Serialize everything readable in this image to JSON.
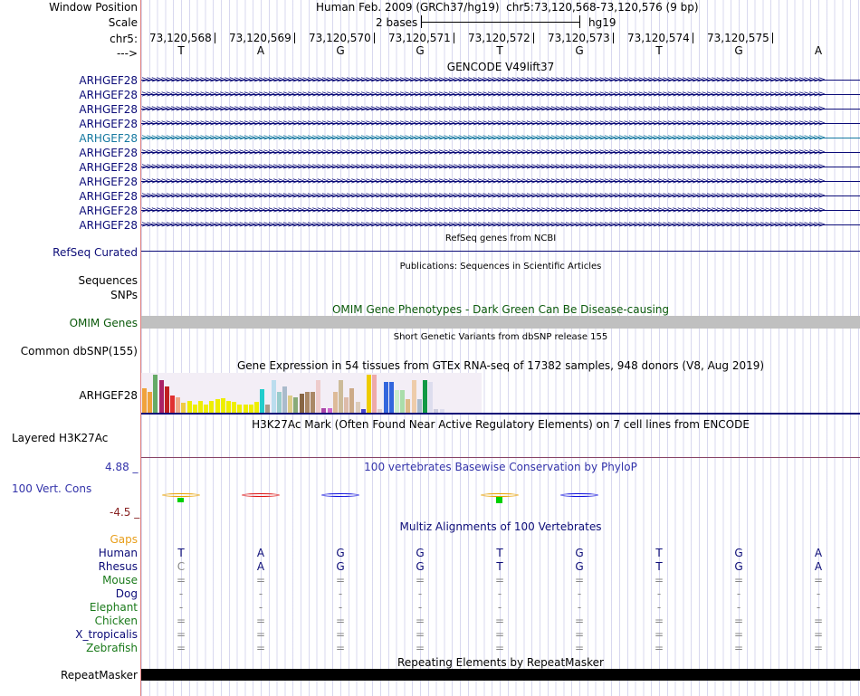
{
  "header": {
    "window_position_label": "Window Position",
    "assembly": "Human Feb. 2009 (GRCh37/hg19)",
    "position": "chr5:73,120,568-73,120,576 (9 bp)",
    "scale_label": "Scale",
    "scale_text": "2 bases",
    "db": "hg19",
    "chrom_label": "chr5:",
    "strand_label": "--->"
  },
  "ruler": {
    "positions": [
      "73,120,568",
      "73,120,569",
      "73,120,570",
      "73,120,571",
      "73,120,572",
      "73,120,573",
      "73,120,574",
      "73,120,575"
    ]
  },
  "sequence": [
    "T",
    "A",
    "G",
    "G",
    "T",
    "G",
    "T",
    "G",
    "A"
  ],
  "gencode": {
    "title": "GENCODE V49lift37",
    "transcripts": [
      {
        "name": "ARHGEF28",
        "color": "#0c0c78"
      },
      {
        "name": "ARHGEF28",
        "color": "#0c0c78"
      },
      {
        "name": "ARHGEF28",
        "color": "#0c0c78"
      },
      {
        "name": "ARHGEF28",
        "color": "#0c0c78"
      },
      {
        "name": "ARHGEF28",
        "color": "#1478a0"
      },
      {
        "name": "ARHGEF28",
        "color": "#0c0c78"
      },
      {
        "name": "ARHGEF28",
        "color": "#0c0c78"
      },
      {
        "name": "ARHGEF28",
        "color": "#0c0c78"
      },
      {
        "name": "ARHGEF28",
        "color": "#0c0c78"
      },
      {
        "name": "ARHGEF28",
        "color": "#0c0c78"
      },
      {
        "name": "ARHGEF28",
        "color": "#0c0c78"
      }
    ]
  },
  "refseq": {
    "title": "RefSeq genes from NCBI",
    "label": "RefSeq Curated"
  },
  "publications": {
    "title": "Publications: Sequences in Scientific Articles",
    "label1": "Sequences",
    "label2": "SNPs"
  },
  "omim": {
    "title": "OMIM Gene Phenotypes - Dark Green Can Be Disease-causing",
    "label": "OMIM Genes",
    "color": "#0b5a0b"
  },
  "dbsnp": {
    "title": "Short Genetic Variants from dbSNP release 155",
    "label": "Common dbSNP(155)"
  },
  "gtex": {
    "title": "Gene Expression in 54 tissues from GTEx RNA-seq of 17382 samples, 948 donors (V8, Aug 2019)",
    "label": "ARHGEF28",
    "bars": [
      {
        "h": 0.65,
        "c": "#f0a23c"
      },
      {
        "h": 0.55,
        "c": "#f0a23c"
      },
      {
        "h": 1.0,
        "c": "#66aa66"
      },
      {
        "h": 0.85,
        "c": "#aa2266"
      },
      {
        "h": 0.7,
        "c": "#c02020"
      },
      {
        "h": 0.45,
        "c": "#e03030"
      },
      {
        "h": 0.4,
        "c": "#eeaa88"
      },
      {
        "h": 0.25,
        "c": "#eecc44"
      },
      {
        "h": 0.3,
        "c": "#eeee00"
      },
      {
        "h": 0.22,
        "c": "#eeee00"
      },
      {
        "h": 0.3,
        "c": "#eeee00"
      },
      {
        "h": 0.22,
        "c": "#eeee00"
      },
      {
        "h": 0.32,
        "c": "#eeee00"
      },
      {
        "h": 0.35,
        "c": "#eeee00"
      },
      {
        "h": 0.38,
        "c": "#eeee00"
      },
      {
        "h": 0.3,
        "c": "#eeee00"
      },
      {
        "h": 0.28,
        "c": "#eeee00"
      },
      {
        "h": 0.22,
        "c": "#eeee00"
      },
      {
        "h": 0.22,
        "c": "#eeee00"
      },
      {
        "h": 0.22,
        "c": "#eeee00"
      },
      {
        "h": 0.28,
        "c": "#eeee00"
      },
      {
        "h": 0.62,
        "c": "#22cccc"
      },
      {
        "h": 0.22,
        "c": "#aa9988"
      },
      {
        "h": 0.85,
        "c": "#bbddee"
      },
      {
        "h": 0.55,
        "c": "#99cccc"
      },
      {
        "h": 0.7,
        "c": "#aabbcc"
      },
      {
        "h": 0.45,
        "c": "#ddcc88"
      },
      {
        "h": 0.4,
        "c": "#88aa77"
      },
      {
        "h": 0.5,
        "c": "#886644"
      },
      {
        "h": 0.55,
        "c": "#aa8866"
      },
      {
        "h": 0.55,
        "c": "#aa8866"
      },
      {
        "h": 0.85,
        "c": "#eecccc"
      },
      {
        "h": 0.13,
        "c": "#aa44aa"
      },
      {
        "h": 0.13,
        "c": "#cc66cc"
      },
      {
        "h": 0.55,
        "c": "#ddbb99"
      },
      {
        "h": 0.85,
        "c": "#ccbb99"
      },
      {
        "h": 0.4,
        "c": "#ddbbaa"
      },
      {
        "h": 0.65,
        "c": "#ccaa88"
      },
      {
        "h": 0.28,
        "c": "#ddccbb"
      },
      {
        "h": 0.1,
        "c": "#4444cc"
      },
      {
        "h": 1.0,
        "c": "#eecc00"
      },
      {
        "h": 1.0,
        "c": "#eeaaaa"
      },
      {
        "h": 0.1,
        "c": "#ddcccc"
      },
      {
        "h": 0.82,
        "c": "#3366dd"
      },
      {
        "h": 0.82,
        "c": "#3366dd"
      },
      {
        "h": 0.6,
        "c": "#cceecc"
      },
      {
        "h": 0.6,
        "c": "#aaddaa"
      },
      {
        "h": 0.35,
        "c": "#ddbb88"
      },
      {
        "h": 0.85,
        "c": "#eeccaa"
      },
      {
        "h": 0.35,
        "c": "#aabbcc"
      },
      {
        "h": 0.85,
        "c": "#119944"
      },
      {
        "h": 0.8,
        "c": "#ddddee"
      },
      {
        "h": 0.1,
        "c": "#ccccdd"
      },
      {
        "h": 0.1,
        "c": "#ddddee"
      }
    ]
  },
  "h3k27ac": {
    "title": "H3K27Ac Mark (Often Found Near Active Regulatory Elements) on 7 cell lines from ENCODE",
    "label": "Layered H3K27Ac"
  },
  "cons": {
    "title": "100 vertebrates Basewise Conservation by PhyloP",
    "label": "100 Vert. Cons",
    "top": "4.88 _",
    "bottom": "-4.5 _",
    "glyphs": [
      {
        "pos": 0.5,
        "c": "#e8a000",
        "g": "#00d000",
        "tall": false
      },
      {
        "pos": 1.5,
        "c": "#dd1111",
        "g": null,
        "tall": false
      },
      {
        "pos": 2.5,
        "c": "#1111dd",
        "g": null,
        "tall": false
      },
      {
        "pos": 4.5,
        "c": "#e8a000",
        "g": "#00d000",
        "tall": true
      },
      {
        "pos": 5.5,
        "c": "#1111dd",
        "g": null,
        "tall": false
      }
    ]
  },
  "multiz": {
    "title": "Multiz Alignments of 100 Vertebrates",
    "gaps_label": "Gaps",
    "species": [
      {
        "name": "Human",
        "color": "#0c0c78",
        "bases": [
          "T",
          "A",
          "G",
          "G",
          "T",
          "G",
          "T",
          "G",
          "A"
        ],
        "bcolor": "#0c0c78"
      },
      {
        "name": "Rhesus",
        "color": "#0c0c78",
        "bases": [
          "C",
          "A",
          "G",
          "G",
          "T",
          "G",
          "T",
          "G",
          "A"
        ],
        "bcolor": "#0c0c78"
      },
      {
        "name": "Mouse",
        "color": "#1a7a1a",
        "bases": [
          "=",
          "=",
          "=",
          "=",
          "=",
          "=",
          "=",
          "=",
          "="
        ],
        "bcolor": "#888"
      },
      {
        "name": "Dog",
        "color": "#0c0c78",
        "bases": [
          "-",
          "-",
          "-",
          "-",
          "-",
          "-",
          "-",
          "-",
          "-"
        ],
        "bcolor": "#888"
      },
      {
        "name": "Elephant",
        "color": "#1a7a1a",
        "bases": [
          "-",
          "-",
          "-",
          "-",
          "-",
          "-",
          "-",
          "-",
          "-"
        ],
        "bcolor": "#888"
      },
      {
        "name": "Chicken",
        "color": "#1a7a1a",
        "bases": [
          "=",
          "=",
          "=",
          "=",
          "=",
          "=",
          "=",
          "=",
          "="
        ],
        "bcolor": "#888"
      },
      {
        "name": "X_tropicalis",
        "color": "#0c0c78",
        "bases": [
          "=",
          "=",
          "=",
          "=",
          "=",
          "=",
          "=",
          "=",
          "="
        ],
        "bcolor": "#888"
      },
      {
        "name": "Zebrafish",
        "color": "#1a7a1a",
        "bases": [
          "=",
          "=",
          "=",
          "=",
          "=",
          "=",
          "=",
          "=",
          "="
        ],
        "bcolor": "#888"
      }
    ]
  },
  "repeatmasker": {
    "title": "Repeating Elements by RepeatMasker",
    "label": "RepeatMasker"
  },
  "colors": {
    "track_title": "#000000",
    "omim_green": "#0b5a0b",
    "cons_blue": "#3333aa",
    "gaps_orange": "#e89e1a"
  }
}
